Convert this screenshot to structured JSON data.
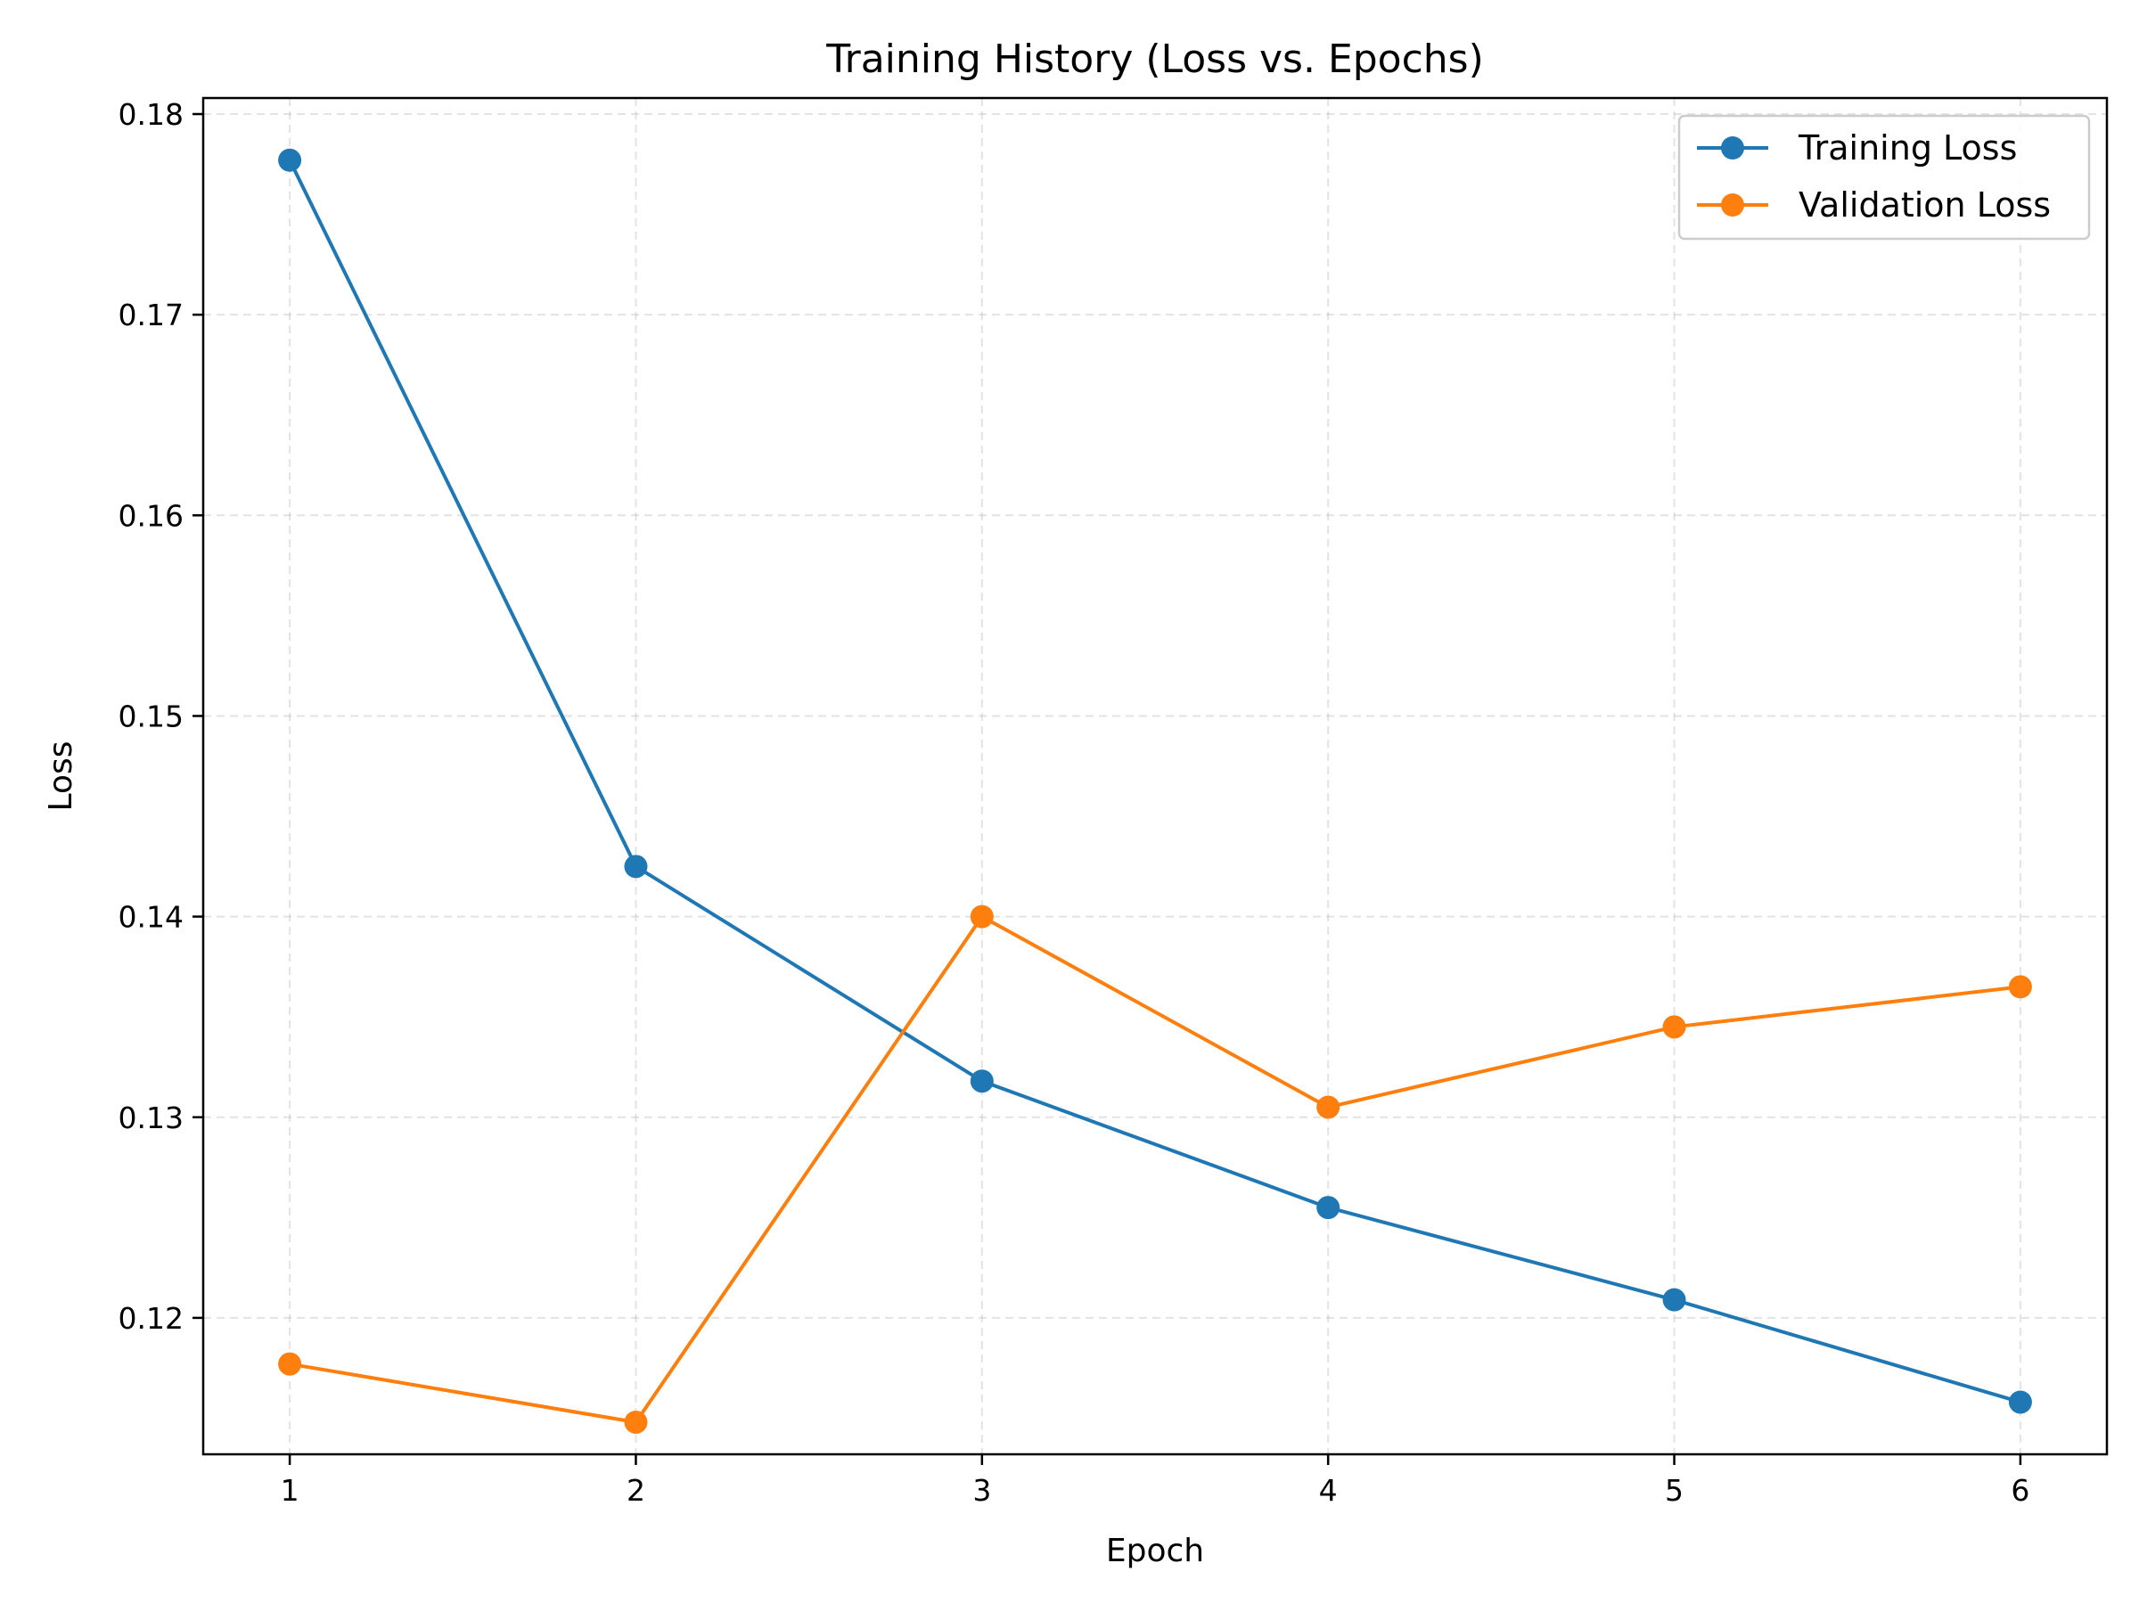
{
  "chart_data": {
    "type": "line",
    "title": "Training History (Loss vs. Epochs)",
    "xlabel": "Epoch",
    "ylabel": "Loss",
    "x": [
      1,
      2,
      3,
      4,
      5,
      6
    ],
    "xticks": [
      1,
      2,
      3,
      4,
      5,
      6
    ],
    "yticks": [
      0.12,
      0.13,
      0.14,
      0.15,
      0.16,
      0.17,
      0.18
    ],
    "xlim": [
      0.75,
      6.25
    ],
    "ylim": [
      0.1132,
      0.1808
    ],
    "grid": true,
    "legend_position": "top-right",
    "series": [
      {
        "name": "Training Loss",
        "color": "#1f77b4",
        "values": [
          0.1777,
          0.1425,
          0.1318,
          0.1255,
          0.1209,
          0.1158
        ]
      },
      {
        "name": "Validation Loss",
        "color": "#ff7f0e",
        "values": [
          0.1177,
          0.1148,
          0.14,
          0.1305,
          0.1345,
          0.1365
        ]
      }
    ]
  }
}
